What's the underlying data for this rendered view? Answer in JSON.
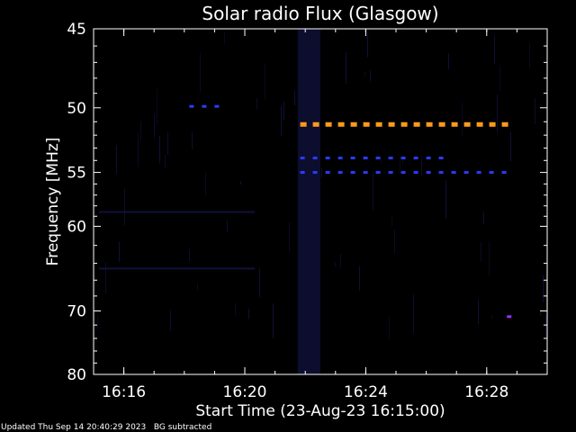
{
  "chart_data": {
    "type": "heatmap",
    "title": "Solar radio Flux (Glasgow)",
    "xlabel": "Start Time (23-Aug-23 16:15:00)",
    "ylabel": "Frequency [MHz]",
    "x_ticks": [
      "16:16",
      "16:20",
      "16:24",
      "16:28"
    ],
    "y_ticks": [
      45,
      50,
      55,
      60,
      70,
      80
    ],
    "ylim": [
      45,
      80
    ],
    "yscale": "reciprocal",
    "xlim": [
      "16:15:00",
      "16:30:00"
    ],
    "colors": {
      "background": "#000000",
      "frame": "#ffffff",
      "hot_band": "#ff9a1a",
      "blue_band": "#2a3cff",
      "faint": "#10103a",
      "violet": "#9b30ff"
    },
    "features": [
      {
        "name": "orange dashed emission band",
        "freq_mhz": 51.2,
        "from": "16:21:50",
        "to": "16:28:45",
        "color": "hot_band"
      },
      {
        "name": "blue dashed band upper",
        "freq_mhz": 53.8,
        "from": "16:21:50",
        "to": "16:26:50",
        "color": "blue_band"
      },
      {
        "name": "blue dashed band lower",
        "freq_mhz": 55.0,
        "from": "16:21:50",
        "to": "16:28:45",
        "color": "blue_band"
      },
      {
        "name": "short blue ticks",
        "freq_mhz": 49.9,
        "from": "16:18:10",
        "to": "16:19:20",
        "color": "blue_band"
      },
      {
        "name": "violet spots",
        "freq_mhz": 70.8,
        "from": "16:28:40",
        "to": "16:29:10",
        "color": "violet"
      }
    ]
  },
  "footer": {
    "updated": "Updated Thu Sep 14 20:40:29 2023",
    "note": "BG subtracted"
  }
}
